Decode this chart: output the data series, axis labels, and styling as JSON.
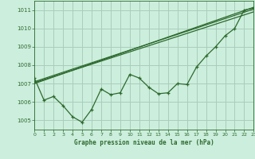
{
  "title": "Graphe pression niveau de la mer (hPa)",
  "background_color": "#cceedd",
  "grid_color": "#aaccbb",
  "line_color": "#2d6a2d",
  "xlim": [
    0,
    23
  ],
  "ylim": [
    1004.5,
    1011.5
  ],
  "yticks": [
    1005,
    1006,
    1007,
    1008,
    1009,
    1010,
    1011
  ],
  "xticks": [
    0,
    1,
    2,
    3,
    4,
    5,
    6,
    7,
    8,
    9,
    10,
    11,
    12,
    13,
    14,
    15,
    16,
    17,
    18,
    19,
    20,
    21,
    22,
    23
  ],
  "main_series": [
    1007.3,
    1006.1,
    1006.3,
    1005.8,
    1005.2,
    1004.9,
    1005.6,
    1006.7,
    1006.4,
    1006.5,
    1007.5,
    1007.3,
    1006.8,
    1006.45,
    1006.5,
    1007.0,
    1006.95,
    1007.9,
    1008.5,
    1009.0,
    1009.6,
    1010.0,
    1011.0,
    1011.1
  ],
  "trend_lines": [
    [
      [
        0,
        1007.0
      ],
      [
        23,
        1011.15
      ]
    ],
    [
      [
        0,
        1007.05
      ],
      [
        23,
        1010.9
      ]
    ],
    [
      [
        0,
        1007.1
      ],
      [
        23,
        1011.05
      ]
    ]
  ]
}
